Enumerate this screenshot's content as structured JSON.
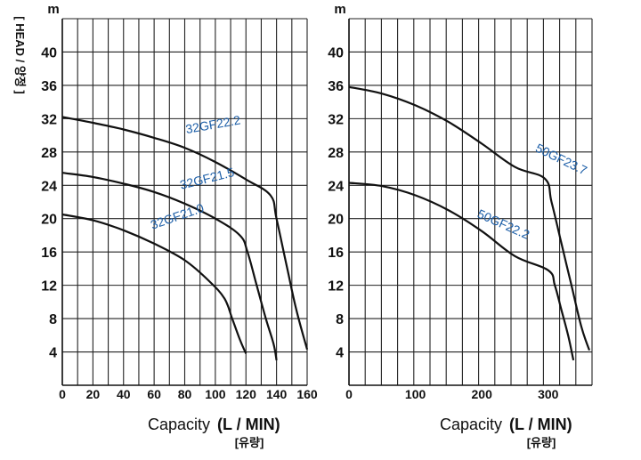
{
  "y_axis_label": "[ HEAD / 양정 ]",
  "chart_data": [
    {
      "type": "line",
      "y_unit": "m",
      "x_axis_label": "Capacity",
      "x_axis_unit": "(L / MIN)",
      "x_axis_sublabel": "[유량]",
      "xlim": [
        0,
        160
      ],
      "ylim": [
        0,
        44
      ],
      "x_ticks": [
        "0",
        "20",
        "40",
        "60",
        "80",
        "100",
        "120",
        "140",
        "160"
      ],
      "y_ticks": [
        "4",
        "8",
        "12",
        "16",
        "20",
        "24",
        "28",
        "32",
        "36",
        "40"
      ],
      "grid": true,
      "series": [
        {
          "name": "32GF22.2",
          "color": "#1d5fa8",
          "points": [
            [
              0,
              32.2
            ],
            [
              20,
              31.5
            ],
            [
              40,
              30.7
            ],
            [
              60,
              29.7
            ],
            [
              80,
              28.5
            ],
            [
              100,
              26.8
            ],
            [
              120,
              24.7
            ],
            [
              136,
              22.8
            ],
            [
              140,
              20
            ],
            [
              147,
              14
            ],
            [
              153,
              9
            ],
            [
              160,
              4.3
            ]
          ]
        },
        {
          "name": "32GF21.5",
          "color": "#1d5fa8",
          "points": [
            [
              0,
              25.5
            ],
            [
              20,
              25.0
            ],
            [
              40,
              24.2
            ],
            [
              60,
              23.2
            ],
            [
              80,
              21.8
            ],
            [
              100,
              20.0
            ],
            [
              116,
              18.0
            ],
            [
              121,
              16
            ],
            [
              127,
              12
            ],
            [
              133,
              8
            ],
            [
              138,
              5
            ],
            [
              140,
              3.0
            ]
          ]
        },
        {
          "name": "32GF21.0",
          "color": "#1d5fa8",
          "points": [
            [
              0,
              20.5
            ],
            [
              20,
              19.8
            ],
            [
              40,
              18.6
            ],
            [
              60,
              17.0
            ],
            [
              80,
              15.0
            ],
            [
              96,
              12.5
            ],
            [
              106,
              10.4
            ],
            [
              111,
              8
            ],
            [
              116,
              5.5
            ],
            [
              120,
              3.8
            ]
          ]
        }
      ]
    },
    {
      "type": "line",
      "y_unit": "m",
      "x_axis_label": "Capacity",
      "x_axis_unit": "(L / MIN)",
      "x_axis_sublabel": "[유량]",
      "xlim": [
        0,
        366
      ],
      "ylim": [
        0,
        44
      ],
      "x_ticks": [
        "0",
        "100",
        "200",
        "300"
      ],
      "y_ticks": [
        "4",
        "8",
        "12",
        "16",
        "20",
        "24",
        "28",
        "32",
        "36",
        "40"
      ],
      "grid": true,
      "series": [
        {
          "name": "50GF23.7",
          "color": "#1d5fa8",
          "points": [
            [
              0,
              35.8
            ],
            [
              50,
              35.0
            ],
            [
              100,
              33.6
            ],
            [
              150,
              31.6
            ],
            [
              200,
              29.0
            ],
            [
              250,
              26.2
            ],
            [
              295,
              24.8
            ],
            [
              305,
              22
            ],
            [
              320,
              17
            ],
            [
              335,
              12
            ],
            [
              350,
              7
            ],
            [
              362,
              4.2
            ]
          ]
        },
        {
          "name": "50GF22.2",
          "color": "#1d5fa8",
          "points": [
            [
              0,
              24.3
            ],
            [
              50,
              23.9
            ],
            [
              100,
              22.8
            ],
            [
              150,
              21.0
            ],
            [
              200,
              18.5
            ],
            [
              250,
              15.5
            ],
            [
              300,
              13.8
            ],
            [
              310,
              12
            ],
            [
              320,
              9
            ],
            [
              330,
              6
            ],
            [
              338,
              3.0
            ]
          ]
        }
      ]
    }
  ]
}
